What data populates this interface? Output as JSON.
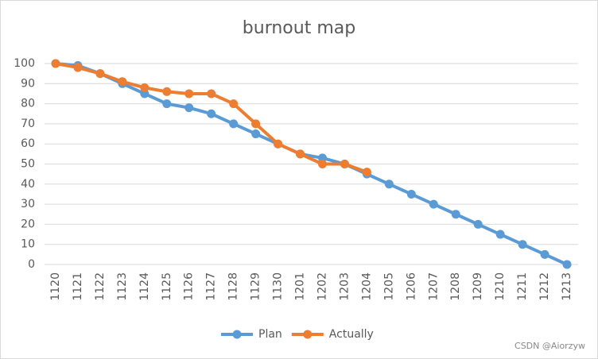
{
  "chart_data": {
    "type": "line",
    "title": "burnout map",
    "categories": [
      "1120",
      "1121",
      "1122",
      "1123",
      "1124",
      "1125",
      "1126",
      "1127",
      "1128",
      "1129",
      "1130",
      "1201",
      "1202",
      "1203",
      "1204",
      "1205",
      "1206",
      "1207",
      "1208",
      "1209",
      "1210",
      "1211",
      "1212",
      "1213"
    ],
    "series": [
      {
        "name": "Plan",
        "color": "#5b9bd5",
        "values": [
          100,
          99,
          95,
          90,
          85,
          80,
          78,
          75,
          70,
          65,
          60,
          55,
          53,
          50,
          45,
          40,
          35,
          30,
          25,
          20,
          15,
          10,
          5,
          0
        ]
      },
      {
        "name": "Actually",
        "color": "#ed7d31",
        "values": [
          100,
          98,
          95,
          91,
          88,
          86,
          85,
          85,
          80,
          70,
          60,
          55,
          50,
          50,
          46,
          null,
          null,
          null,
          null,
          null,
          null,
          null,
          null,
          null
        ]
      }
    ],
    "ylim": [
      0,
      100
    ],
    "yticks": [
      0,
      10,
      20,
      30,
      40,
      50,
      60,
      70,
      80,
      90,
      100
    ],
    "grid": true,
    "legend": "bottom",
    "watermark": "CSDN @Aiorzyw"
  }
}
